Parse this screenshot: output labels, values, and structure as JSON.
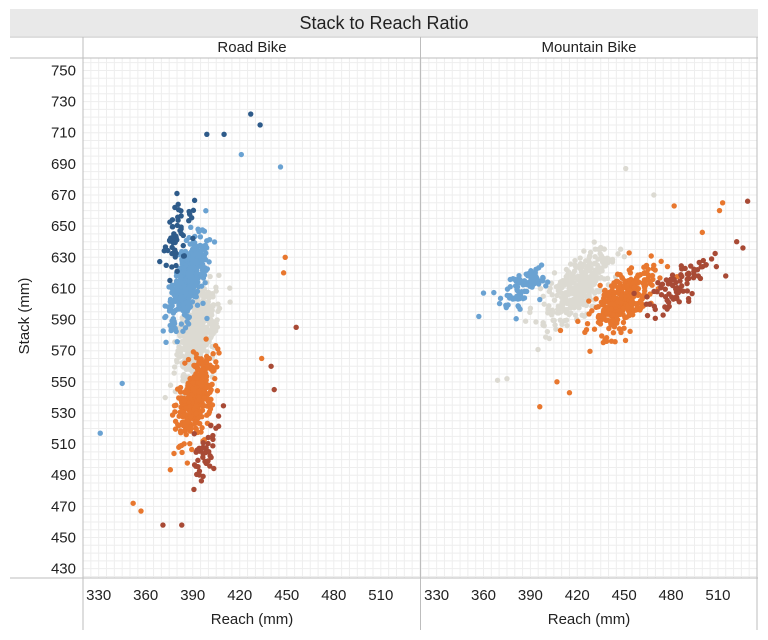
{
  "chart_data": {
    "type": "scatter",
    "title": "Stack to Reach Ratio",
    "ylabel": "Stack (mm)",
    "xlabel": "Reach (mm)",
    "ylim": [
      424,
      758
    ],
    "yticks": [
      430,
      450,
      470,
      490,
      510,
      530,
      550,
      570,
      590,
      610,
      630,
      650,
      670,
      690,
      710,
      730,
      750
    ],
    "xticks": [
      330,
      360,
      390,
      420,
      450,
      480,
      510
    ],
    "colors": {
      "dark_blue": "#2e5b8a",
      "blue": "#6aa2d2",
      "gray": "#dcdad2",
      "orange": "#e8772e",
      "dark_red": "#a84a35"
    },
    "panels": [
      {
        "title": "Road Bike",
        "xlim": [
          320,
          535
        ],
        "clusters": [
          {
            "category": "gray",
            "n": 520,
            "center": [
              393,
              582
            ],
            "major": 26,
            "minor": 8,
            "slope": 3.0
          },
          {
            "category": "blue",
            "n": 380,
            "center": [
              387,
              614
            ],
            "major": 26,
            "minor": 7,
            "slope": 3.0
          },
          {
            "category": "orange",
            "n": 360,
            "center": [
              392,
              540
            ],
            "major": 24,
            "minor": 7,
            "slope": 3.0
          },
          {
            "category": "dark_blue",
            "n": 55,
            "center": [
              380,
              645
            ],
            "major": 22,
            "minor": 6,
            "slope": 3.0
          },
          {
            "category": "dark_red",
            "n": 45,
            "center": [
              398,
              505
            ],
            "major": 20,
            "minor": 6,
            "slope": 3.0
          }
        ],
        "points": [
          {
            "x": 331,
            "y": 517,
            "category": "blue"
          },
          {
            "x": 345,
            "y": 549,
            "category": "blue"
          },
          {
            "x": 352,
            "y": 472,
            "category": "orange"
          },
          {
            "x": 357,
            "y": 467,
            "category": "orange"
          },
          {
            "x": 371,
            "y": 458,
            "category": "dark_red"
          },
          {
            "x": 383,
            "y": 458,
            "category": "dark_red"
          },
          {
            "x": 399,
            "y": 709,
            "category": "dark_blue"
          },
          {
            "x": 410,
            "y": 709,
            "category": "dark_blue"
          },
          {
            "x": 427,
            "y": 722,
            "category": "dark_blue"
          },
          {
            "x": 433,
            "y": 715,
            "category": "dark_blue"
          },
          {
            "x": 446,
            "y": 688,
            "category": "blue"
          },
          {
            "x": 421,
            "y": 696,
            "category": "blue"
          },
          {
            "x": 449,
            "y": 630,
            "category": "orange"
          },
          {
            "x": 448,
            "y": 620,
            "category": "orange"
          },
          {
            "x": 456,
            "y": 585,
            "category": "dark_red"
          },
          {
            "x": 440,
            "y": 560,
            "category": "dark_red"
          },
          {
            "x": 442,
            "y": 545,
            "category": "dark_red"
          },
          {
            "x": 434,
            "y": 565,
            "category": "orange"
          }
        ]
      },
      {
        "title": "Mountain Bike",
        "xlim": [
          320,
          535
        ],
        "clusters": [
          {
            "category": "gray",
            "n": 330,
            "center": [
              420,
              610
            ],
            "major": 24,
            "minor": 10,
            "slope": 1.0
          },
          {
            "category": "orange",
            "n": 300,
            "center": [
              449,
              603
            ],
            "major": 24,
            "minor": 10,
            "slope": 1.0
          },
          {
            "category": "blue",
            "n": 80,
            "center": [
              386,
              612
            ],
            "major": 18,
            "minor": 8,
            "slope": 1.0
          },
          {
            "category": "dark_red",
            "n": 80,
            "center": [
              483,
              610
            ],
            "major": 22,
            "minor": 7,
            "slope": 1.0
          }
        ],
        "points": [
          {
            "x": 357,
            "y": 592,
            "category": "blue"
          },
          {
            "x": 360,
            "y": 607,
            "category": "blue"
          },
          {
            "x": 369,
            "y": 551,
            "category": "gray"
          },
          {
            "x": 375,
            "y": 552,
            "category": "gray"
          },
          {
            "x": 396,
            "y": 534,
            "category": "orange"
          },
          {
            "x": 407,
            "y": 550,
            "category": "orange"
          },
          {
            "x": 415,
            "y": 543,
            "category": "orange"
          },
          {
            "x": 451,
            "y": 687,
            "category": "gray"
          },
          {
            "x": 469,
            "y": 670,
            "category": "gray"
          },
          {
            "x": 500,
            "y": 646,
            "category": "orange"
          },
          {
            "x": 511,
            "y": 660,
            "category": "orange"
          },
          {
            "x": 513,
            "y": 665,
            "category": "orange"
          },
          {
            "x": 529,
            "y": 666,
            "category": "dark_red"
          },
          {
            "x": 522,
            "y": 640,
            "category": "dark_red"
          },
          {
            "x": 526,
            "y": 636,
            "category": "dark_red"
          },
          {
            "x": 515,
            "y": 618,
            "category": "dark_red"
          },
          {
            "x": 509,
            "y": 624,
            "category": "dark_red"
          },
          {
            "x": 482,
            "y": 663,
            "category": "orange"
          }
        ]
      }
    ]
  }
}
